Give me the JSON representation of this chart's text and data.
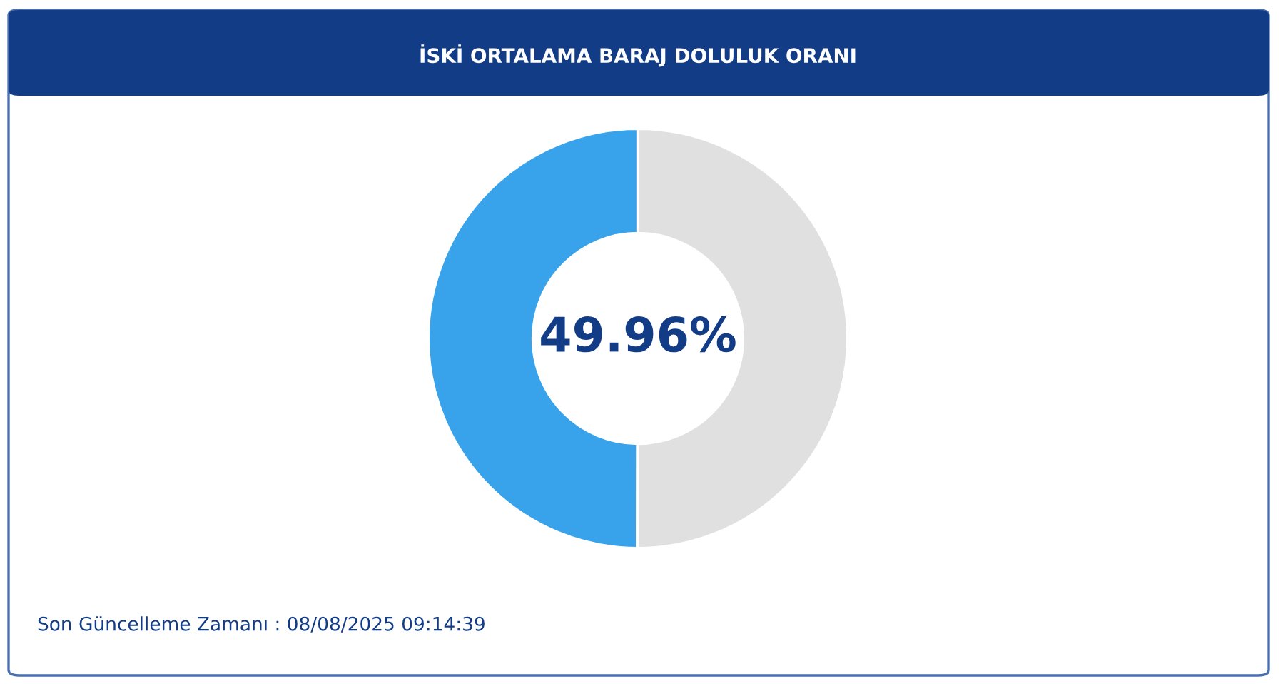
{
  "chart_data": {
    "type": "donut",
    "title": "İSKİ ORTALAMA BARAJ DOLULUK ORANI",
    "categories": [
      null,
      null
    ],
    "values": [
      49.96,
      50.04
    ],
    "colors": [
      "#38a3ea",
      "#e0e0e0"
    ],
    "value_labels": [
      "49.96%",
      null
    ],
    "legend": false,
    "annotations": [
      "Son Güncelleme Zamanı : 08/08/2025 09:14:39"
    ]
  }
}
